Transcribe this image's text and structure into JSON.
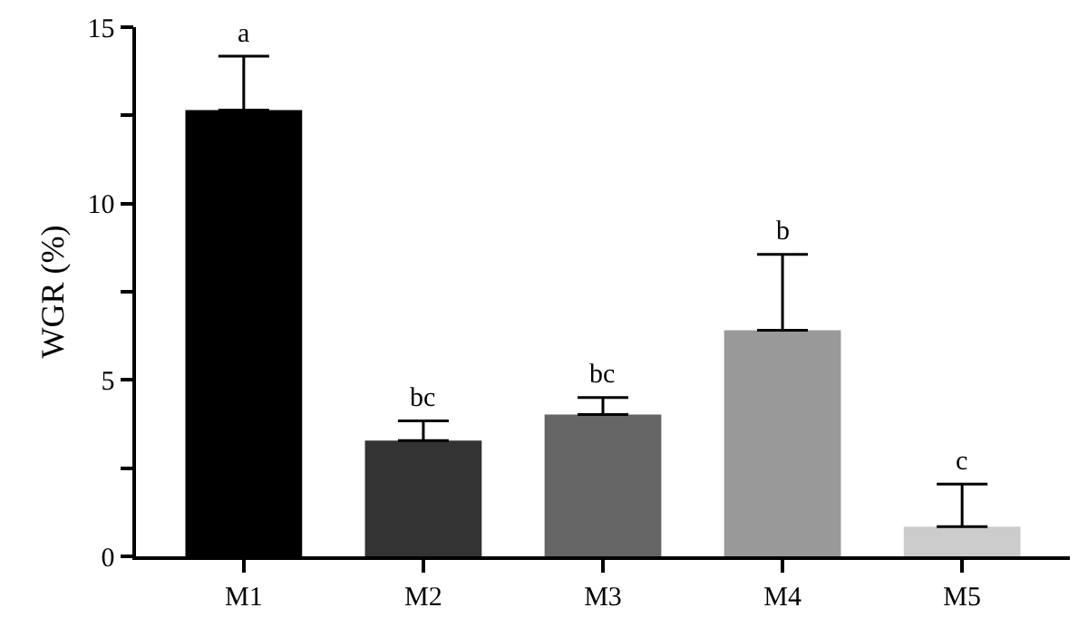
{
  "chart_data": {
    "type": "bar",
    "ylabel": "WGR (%)",
    "categories": [
      "M1",
      "M2",
      "M3",
      "M4",
      "M5"
    ],
    "values": [
      12.65,
      3.28,
      4.02,
      6.41,
      0.84
    ],
    "colors": [
      "#000000",
      "#333333",
      "#666666",
      "#999999",
      "#cccccc"
    ],
    "errors": [
      [
        12.65,
        14.18
      ],
      [
        3.28,
        3.84
      ],
      [
        4.02,
        4.5
      ],
      [
        6.41,
        8.56
      ],
      [
        0.84,
        2.05
      ]
    ],
    "ylim": [
      0,
      15
    ],
    "yticks": [
      0,
      {
        "value": 2.5,
        "label": null
      },
      5,
      {
        "value": 7.5,
        "label": null
      },
      10,
      {
        "value": 12.5,
        "label": null
      },
      15
    ],
    "annotations": [
      {
        "text": "a",
        "x": "M1",
        "y": 14.18
      },
      {
        "text": "bc",
        "x": "M2",
        "y": 3.84
      },
      {
        "text": "bc",
        "x": "M3",
        "y": 4.5
      },
      {
        "text": "b",
        "x": "M4",
        "y": 8.56
      },
      {
        "text": "c",
        "x": "M5",
        "y": 2.05
      }
    ]
  }
}
